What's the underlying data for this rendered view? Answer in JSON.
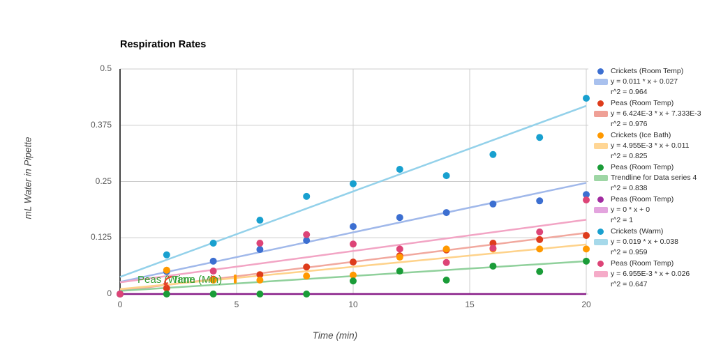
{
  "chart": {
    "title": "Respiration Rates",
    "x_axis": {
      "label": "Time (min)"
    },
    "y_axis": {
      "label": "mL Water in Pipette"
    },
    "annotations": {
      "overlap_text_1": "Peas (Warm",
      "overlap_text_2": "Time (Min)",
      "text_color": "#35a035",
      "arrow_color": "#e8442a",
      "sliver_color": "#ff9900"
    },
    "colors": {
      "gridline": "#cccccc",
      "axis_line": "#424242",
      "tick_text": "#595959"
    }
  },
  "chart_data": {
    "type": "scatter",
    "title": "Respiration Rates",
    "xlabel": "Time (min)",
    "ylabel": "mL Water in Pipette",
    "x_range": [
      0,
      20
    ],
    "y_range": [
      0,
      0.5
    ],
    "x_ticks": [
      0,
      5,
      10,
      15,
      20
    ],
    "x_tick_labels": [
      "0",
      "5",
      "10",
      "15",
      "20"
    ],
    "y_ticks": [
      0,
      0.125,
      0.25,
      0.375,
      0.5
    ],
    "y_tick_labels": [
      "0",
      "0.125",
      "0.25",
      "0.375",
      "0.5"
    ],
    "grid": true,
    "legend_position": "right",
    "series": [
      {
        "name": "Crickets (Room Temp)",
        "color": "#3c6fd1",
        "trend_color": "#a0b8ea",
        "swatch_color": "#a9c1ee",
        "equation": "y = 0.011 * x + 0.027",
        "r2": "r^2 = 0.964",
        "trend_slope": 0.011,
        "trend_intercept": 0.027,
        "points": [
          [
            0,
            0
          ],
          [
            2,
            0.05
          ],
          [
            4,
            0.073
          ],
          [
            6,
            0.099
          ],
          [
            8,
            0.119
          ],
          [
            10,
            0.15
          ],
          [
            12,
            0.17
          ],
          [
            14,
            0.181
          ],
          [
            16,
            0.2
          ],
          [
            18,
            0.207
          ],
          [
            20,
            0.221
          ]
        ]
      },
      {
        "name": "Peas (Room Temp)",
        "color": "#de3c1c",
        "trend_color": "#f1a89e",
        "swatch_color": "#efa096",
        "equation": "y = 6.424E-3 * x + 7.333E-3",
        "r2": "r^2 = 0.976",
        "trend_slope": 0.006424,
        "trend_intercept": 0.007333,
        "points": [
          [
            0,
            0
          ],
          [
            2,
            0.013
          ],
          [
            4,
            0.033
          ],
          [
            6,
            0.043
          ],
          [
            8,
            0.06
          ],
          [
            10,
            0.071
          ],
          [
            12,
            0.085
          ],
          [
            14,
            0.098
          ],
          [
            16,
            0.113
          ],
          [
            18,
            0.121
          ],
          [
            20,
            0.13
          ]
        ]
      },
      {
        "name": "Crickets (Ice Bath)",
        "color": "#ff9900",
        "trend_color": "#fed28a",
        "swatch_color": "#ffd695",
        "equation": "y = 4.955E-3 * x + 0.011",
        "r2": "r^2 = 0.825",
        "trend_slope": 0.004955,
        "trend_intercept": 0.011,
        "points": [
          [
            2,
            0.053
          ],
          [
            4,
            0.031
          ],
          [
            6,
            0.031
          ],
          [
            8,
            0.04
          ],
          [
            10,
            0.042
          ],
          [
            12,
            0.082
          ],
          [
            14,
            0.1
          ],
          [
            16,
            0.1
          ],
          [
            18,
            0.1
          ],
          [
            20,
            0.1
          ]
        ]
      },
      {
        "name": "Peas (Room Temp)",
        "color": "#1a9c38",
        "trend_color": "#8fd09b",
        "swatch_color": "#9ed6a5",
        "equation": "Trendline for Data series 4",
        "r2": "r^2 = 0.838",
        "trend_slope": 0.0033,
        "trend_intercept": 0.007,
        "points": [
          [
            0,
            0
          ],
          [
            2,
            0
          ],
          [
            4,
            0
          ],
          [
            6,
            0
          ],
          [
            8,
            0
          ],
          [
            10,
            0.029
          ],
          [
            12,
            0.051
          ],
          [
            14,
            0.031
          ],
          [
            16,
            0.062
          ],
          [
            18,
            0.05
          ],
          [
            20,
            0.073
          ]
        ]
      },
      {
        "name": "Peas (Room Temp)",
        "color": "#a22ba0",
        "trend_color": "#871c87",
        "swatch_color": "#e3a4de",
        "equation": "y = 0 * x + 0",
        "r2": "r^2 = 1",
        "trend_slope": 0,
        "trend_intercept": 0,
        "points": [
          [
            0,
            0
          ]
        ]
      },
      {
        "name": "Crickets (Warm)",
        "color": "#18a0cf",
        "trend_color": "#93d1ea",
        "swatch_color": "#a6d9ea",
        "equation": "y = 0.019 * x + 0.038",
        "r2": "r^2 = 0.959",
        "trend_slope": 0.019,
        "trend_intercept": 0.038,
        "points": [
          [
            2,
            0.087
          ],
          [
            4,
            0.113
          ],
          [
            6,
            0.164
          ],
          [
            8,
            0.217
          ],
          [
            10,
            0.245
          ],
          [
            12,
            0.277
          ],
          [
            14,
            0.263
          ],
          [
            16,
            0.31
          ],
          [
            18,
            0.348
          ],
          [
            20,
            0.435
          ]
        ]
      },
      {
        "name": "Peas (Room Temp)",
        "color": "#dd4477",
        "trend_color": "#f2a4c4",
        "swatch_color": "#f5abc8",
        "equation": "y = 6.955E-3 * x + 0.026",
        "r2": "r^2 = 0.647",
        "trend_slope": 0.006955,
        "trend_intercept": 0.026,
        "points": [
          [
            0,
            0
          ],
          [
            4,
            0.051
          ],
          [
            6,
            0.113
          ],
          [
            8,
            0.132
          ],
          [
            10,
            0.111
          ],
          [
            12,
            0.1
          ],
          [
            14,
            0.07
          ],
          [
            16,
            0.102
          ],
          [
            18,
            0.138
          ],
          [
            20,
            0.209
          ]
        ]
      }
    ]
  }
}
